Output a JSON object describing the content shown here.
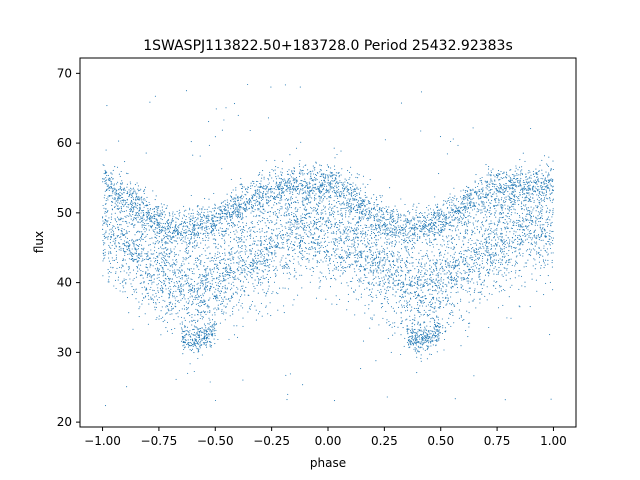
{
  "chart_data": {
    "type": "scatter",
    "title": "1SWASPJ113822.50+183728.0 Period 25432.92383s",
    "xlabel": "phase",
    "ylabel": "flux",
    "xlim": [
      -1.1,
      1.1
    ],
    "ylim": [
      19.3,
      72.2
    ],
    "xticks": [
      -1.0,
      -0.75,
      -0.5,
      -0.25,
      0.0,
      0.25,
      0.5,
      0.75,
      1.0
    ],
    "xtick_labels": [
      "−1.00",
      "−0.75",
      "−0.50",
      "−0.25",
      "0.00",
      "0.25",
      "0.50",
      "0.75",
      "1.00"
    ],
    "yticks": [
      20,
      30,
      40,
      50,
      60,
      70
    ],
    "ytick_labels": [
      "20",
      "30",
      "40",
      "50",
      "60",
      "70"
    ],
    "grid": false,
    "legend": "none",
    "marker_color": "#1f77b4",
    "series": [
      {
        "values_note_free": true,
        "description_free": true,
        "upper_band": [
          {
            "x": -1.0,
            "y": 54.5
          },
          {
            "x": -0.9,
            "y": 52.5
          },
          {
            "x": -0.8,
            "y": 50.0
          },
          {
            "x": -0.7,
            "y": 48.0
          },
          {
            "x": -0.6,
            "y": 48.0
          },
          {
            "x": -0.5,
            "y": 49.0
          },
          {
            "x": -0.4,
            "y": 51.0
          },
          {
            "x": -0.3,
            "y": 53.0
          },
          {
            "x": -0.2,
            "y": 54.0
          },
          {
            "x": -0.1,
            "y": 54.0
          },
          {
            "x": 0.0,
            "y": 54.5
          },
          {
            "x": 0.1,
            "y": 52.5
          },
          {
            "x": 0.2,
            "y": 50.0
          },
          {
            "x": 0.3,
            "y": 48.0
          },
          {
            "x": 0.4,
            "y": 48.0
          },
          {
            "x": 0.5,
            "y": 49.0
          },
          {
            "x": 0.6,
            "y": 51.0
          },
          {
            "x": 0.7,
            "y": 53.0
          },
          {
            "x": 0.8,
            "y": 54.0
          },
          {
            "x": 0.9,
            "y": 54.0
          },
          {
            "x": 1.0,
            "y": 54.5
          }
        ],
        "lower_band": [
          {
            "x": -1.0,
            "y": 46.0
          },
          {
            "x": -0.9,
            "y": 44.0
          },
          {
            "x": -0.8,
            "y": 42.0
          },
          {
            "x": -0.7,
            "y": 39.5
          },
          {
            "x": -0.6,
            "y": 37.5
          },
          {
            "x": -0.5,
            "y": 39.0
          },
          {
            "x": -0.4,
            "y": 41.0
          },
          {
            "x": -0.3,
            "y": 43.0
          },
          {
            "x": -0.2,
            "y": 45.0
          },
          {
            "x": -0.1,
            "y": 47.0
          },
          {
            "x": 0.0,
            "y": 46.0
          },
          {
            "x": 0.1,
            "y": 44.0
          },
          {
            "x": 0.2,
            "y": 42.0
          },
          {
            "x": 0.3,
            "y": 39.5
          },
          {
            "x": 0.4,
            "y": 37.5
          },
          {
            "x": 0.5,
            "y": 39.0
          },
          {
            "x": 0.6,
            "y": 41.0
          },
          {
            "x": 0.7,
            "y": 43.0
          },
          {
            "x": 0.8,
            "y": 45.0
          },
          {
            "x": 0.9,
            "y": 47.0
          },
          {
            "x": 1.0,
            "y": 46.0
          }
        ],
        "dip_cluster": [
          {
            "x": -0.65,
            "y": 32.5
          },
          {
            "x": -0.6,
            "y": 31.5
          },
          {
            "x": -0.55,
            "y": 32.0
          },
          {
            "x": -0.5,
            "y": 33.5
          },
          {
            "x": 0.35,
            "y": 32.5
          },
          {
            "x": 0.4,
            "y": 31.5
          },
          {
            "x": 0.45,
            "y": 32.0
          },
          {
            "x": 0.5,
            "y": 33.5
          }
        ]
      }
    ]
  }
}
